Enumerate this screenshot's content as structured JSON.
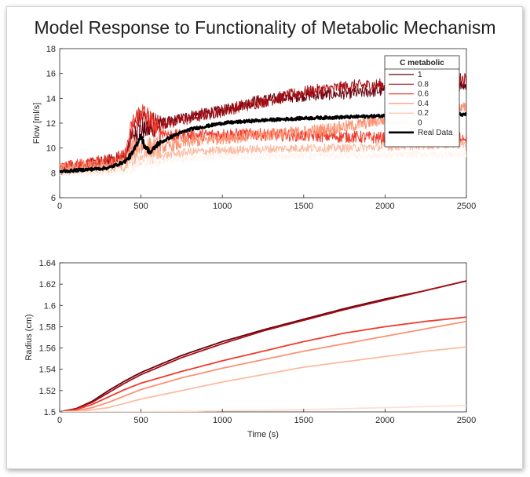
{
  "figure": {
    "title": "Model Response to Functionality of Metabolic Mechanism"
  },
  "chart_data": [
    {
      "type": "line",
      "ylabel": "Flow [ml/s]",
      "xlabel": "",
      "xlim": [
        0,
        2500
      ],
      "ylim": [
        6,
        18
      ],
      "xticks": [
        0,
        500,
        1000,
        1500,
        2000,
        2500
      ],
      "yticks": [
        6,
        8,
        10,
        12,
        14,
        16,
        18
      ],
      "legend": {
        "title": "C metabolic",
        "placement": "top-right"
      },
      "grid": false,
      "series": [
        {
          "name": "1",
          "color": "#67000d",
          "noise": 0.45,
          "x": [
            0,
            200,
            400,
            450,
            500,
            550,
            600,
            700,
            800,
            1000,
            1200,
            1500,
            1800,
            2000,
            2200,
            2500
          ],
          "y": [
            8.2,
            8.6,
            9.2,
            11.0,
            11.5,
            11.4,
            11.8,
            12.2,
            12.6,
            13.0,
            13.8,
            14.2,
            14.4,
            14.6,
            14.8,
            15.0
          ]
        },
        {
          "name": "0.8",
          "color": "#a50f15",
          "noise": 0.5,
          "x": [
            0,
            200,
            400,
            450,
            500,
            550,
            600,
            700,
            800,
            1000,
            1200,
            1500,
            1800,
            2000,
            2200,
            2500
          ],
          "y": [
            8.3,
            8.7,
            9.3,
            11.6,
            12.5,
            12.2,
            12.0,
            12.1,
            12.4,
            13.0,
            13.6,
            14.5,
            15.0,
            15.1,
            15.3,
            15.6
          ]
        },
        {
          "name": "0.6",
          "color": "#ef3b2c",
          "noise": 0.5,
          "x": [
            0,
            200,
            400,
            450,
            500,
            550,
            600,
            700,
            800,
            1000,
            1200,
            1500,
            1800,
            2000,
            2200,
            2500
          ],
          "y": [
            8.4,
            8.8,
            9.4,
            12.0,
            13.0,
            12.4,
            11.4,
            11.0,
            11.0,
            11.1,
            11.1,
            11.0,
            10.9,
            10.8,
            10.8,
            10.9
          ]
        },
        {
          "name": "0.4",
          "color": "#fc9272",
          "noise": 0.5,
          "x": [
            0,
            200,
            400,
            450,
            500,
            550,
            600,
            700,
            800,
            1000,
            1200,
            1500,
            1800,
            2000,
            2200,
            2500
          ],
          "y": [
            8.3,
            8.5,
            8.8,
            10.0,
            10.2,
            10.0,
            10.0,
            10.2,
            10.5,
            10.8,
            11.0,
            11.3,
            11.8,
            12.3,
            12.8,
            13.2
          ]
        },
        {
          "name": "0.2",
          "color": "#fcbba1",
          "noise": 0.35,
          "x": [
            0,
            200,
            400,
            450,
            500,
            550,
            600,
            700,
            800,
            1000,
            1200,
            1500,
            1800,
            2000,
            2200,
            2500
          ],
          "y": [
            8.1,
            8.2,
            8.4,
            9.0,
            9.2,
            9.2,
            9.3,
            9.5,
            9.7,
            9.8,
            9.9,
            10.0,
            10.0,
            10.1,
            10.2,
            10.3
          ]
        },
        {
          "name": "0",
          "color": "#fff5f0",
          "noise": 0.3,
          "x": [
            0,
            200,
            400,
            450,
            500,
            550,
            600,
            700,
            800,
            1000,
            1200,
            1500,
            1800,
            2000,
            2200,
            2500
          ],
          "y": [
            8.0,
            8.0,
            8.1,
            8.5,
            8.8,
            8.9,
            9.0,
            9.1,
            9.2,
            9.3,
            9.3,
            9.4,
            9.4,
            9.4,
            9.5,
            9.5
          ]
        },
        {
          "name": "Real Data",
          "color": "#000000",
          "noise": 0.12,
          "bold": true,
          "x": [
            0,
            100,
            200,
            300,
            400,
            450,
            480,
            500,
            520,
            560,
            600,
            700,
            800,
            1000,
            1200,
            1500,
            1800,
            2000,
            2200,
            2500
          ],
          "y": [
            8.1,
            8.2,
            8.3,
            8.4,
            8.9,
            9.6,
            10.5,
            11.0,
            10.2,
            9.6,
            10.3,
            11.0,
            11.5,
            12.0,
            12.2,
            12.4,
            12.5,
            12.6,
            12.7,
            12.7
          ]
        }
      ]
    },
    {
      "type": "line",
      "ylabel": "Radius (cm)",
      "xlabel": "Time (s)",
      "xlim": [
        0,
        2500
      ],
      "ylim": [
        1.5,
        1.64
      ],
      "xticks": [
        0,
        500,
        1000,
        1500,
        2000,
        2500
      ],
      "yticks": [
        1.5,
        1.52,
        1.54,
        1.56,
        1.58,
        1.6,
        1.62,
        1.64
      ],
      "grid": false,
      "series": [
        {
          "name": "1",
          "color": "#67000d",
          "x": [
            0,
            100,
            200,
            300,
            400,
            500,
            750,
            1000,
            1250,
            1500,
            1750,
            2000,
            2250,
            2500
          ],
          "y": [
            1.5,
            1.503,
            1.51,
            1.52,
            1.529,
            1.537,
            1.553,
            1.566,
            1.577,
            1.587,
            1.597,
            1.606,
            1.614,
            1.623
          ]
        },
        {
          "name": "0.8",
          "color": "#a50f15",
          "x": [
            0,
            100,
            200,
            300,
            400,
            500,
            750,
            1000,
            1250,
            1500,
            1750,
            2000,
            2250,
            2500
          ],
          "y": [
            1.5,
            1.503,
            1.509,
            1.518,
            1.527,
            1.535,
            1.551,
            1.564,
            1.576,
            1.586,
            1.596,
            1.605,
            1.614,
            1.623
          ]
        },
        {
          "name": "0.6",
          "color": "#ef3b2c",
          "x": [
            0,
            100,
            200,
            300,
            400,
            500,
            750,
            1000,
            1250,
            1500,
            1750,
            2000,
            2250,
            2500
          ],
          "y": [
            1.5,
            1.502,
            1.507,
            1.514,
            1.521,
            1.527,
            1.538,
            1.548,
            1.557,
            1.566,
            1.574,
            1.58,
            1.585,
            1.589
          ]
        },
        {
          "name": "0.4",
          "color": "#fc9272",
          "x": [
            0,
            100,
            200,
            300,
            400,
            500,
            750,
            1000,
            1250,
            1500,
            1750,
            2000,
            2250,
            2500
          ],
          "y": [
            1.5,
            1.501,
            1.504,
            1.509,
            1.515,
            1.521,
            1.532,
            1.541,
            1.549,
            1.557,
            1.564,
            1.571,
            1.578,
            1.585
          ]
        },
        {
          "name": "0.2",
          "color": "#fcbba1",
          "x": [
            0,
            100,
            200,
            300,
            400,
            500,
            750,
            1000,
            1250,
            1500,
            1750,
            2000,
            2250,
            2500
          ],
          "y": [
            1.5,
            1.5,
            1.502,
            1.504,
            1.508,
            1.512,
            1.52,
            1.528,
            1.535,
            1.542,
            1.547,
            1.552,
            1.557,
            1.561
          ]
        },
        {
          "name": "0",
          "color": "#fee0d2",
          "x": [
            0,
            500,
            1000,
            1500,
            2000,
            2500
          ],
          "y": [
            1.5,
            1.5,
            1.501,
            1.502,
            1.504,
            1.506
          ]
        }
      ]
    }
  ]
}
